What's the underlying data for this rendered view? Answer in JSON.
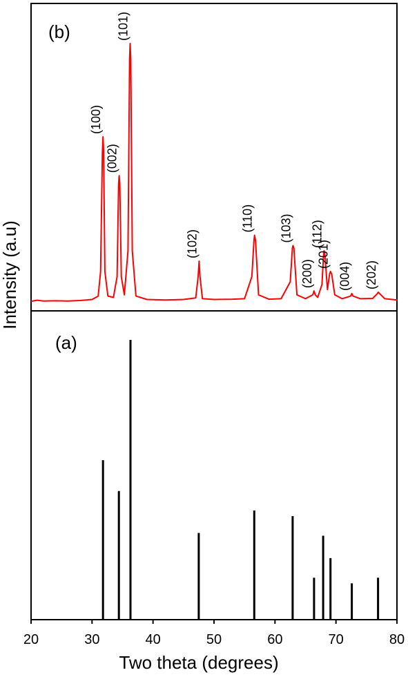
{
  "figure": {
    "ylabel": "Intensity (a.u)",
    "xlabel": "Two theta (degrees)"
  },
  "chart_data": [
    {
      "type": "line",
      "panel_label": "(b)",
      "color": "#ff0000",
      "xlim": [
        20,
        80
      ],
      "ylabel": "Intensity (a.u)",
      "grid": false,
      "x": [
        20,
        21,
        22,
        24,
        26,
        28,
        30,
        31,
        31.4,
        31.7,
        31.8,
        31.9,
        32.1,
        32.6,
        33.5,
        34.1,
        34.35,
        34.45,
        34.55,
        34.8,
        35.3,
        35.9,
        36.15,
        36.25,
        36.35,
        36.6,
        37.2,
        39,
        42,
        45,
        47,
        47.4,
        47.55,
        47.7,
        48.1,
        50,
        53,
        55,
        56.2,
        56.55,
        56.65,
        56.8,
        57.3,
        59,
        61,
        62.5,
        62.85,
        62.95,
        63.1,
        63.6,
        65,
        66.2,
        66.4,
        66.6,
        67,
        67.7,
        67.95,
        68.05,
        68.2,
        68.6,
        68.95,
        69.1,
        69.3,
        69.8,
        71,
        72.4,
        72.6,
        72.8,
        74,
        76,
        76.8,
        76.95,
        77.15,
        78,
        80
      ],
      "y": [
        0.5,
        0.9,
        0.6,
        0.7,
        0.6,
        0.8,
        1.2,
        2.5,
        12,
        58,
        64,
        58,
        12,
        2.5,
        2,
        10,
        46,
        49,
        46,
        10,
        3,
        20,
        94,
        100,
        94,
        20,
        2.5,
        1.2,
        1,
        1.2,
        1.8,
        10,
        16,
        10,
        1.5,
        1.2,
        1.3,
        1.5,
        10,
        24,
        26,
        24,
        3,
        1.3,
        1.5,
        8,
        21,
        22,
        21,
        3,
        1.5,
        3,
        4.5,
        3,
        2,
        7,
        18,
        20,
        18,
        5,
        11,
        12,
        11,
        3,
        1.5,
        2.5,
        3.5,
        2.5,
        1.5,
        1.6,
        3.5,
        4,
        3.5,
        1.5,
        1
      ],
      "peak_labels": [
        {
          "label": "(100)",
          "x": 31.8,
          "y": 64
        },
        {
          "label": "(002)",
          "x": 34.45,
          "y": 49
        },
        {
          "label": "(101)",
          "x": 36.25,
          "y": 100
        },
        {
          "label": "(102)",
          "x": 47.55,
          "y": 16
        },
        {
          "label": "(110)",
          "x": 56.65,
          "y": 26
        },
        {
          "label": "(103)",
          "x": 62.95,
          "y": 22
        },
        {
          "label": "(200)",
          "x": 66.4,
          "y": 4.5
        },
        {
          "label": "(112)",
          "x": 68.05,
          "y": 20
        },
        {
          "label": "(201)",
          "x": 69.1,
          "y": 12
        },
        {
          "label": "(004)",
          "x": 72.6,
          "y": 3.5
        },
        {
          "label": "(202)",
          "x": 76.95,
          "y": 4
        }
      ]
    },
    {
      "type": "bar",
      "panel_label": "(a)",
      "color": "#000000",
      "xlim": [
        20,
        80
      ],
      "ylim": [
        0,
        100
      ],
      "xlabel": "Two theta (degrees)",
      "x_ticks": [
        20,
        30,
        40,
        50,
        60,
        70,
        80
      ],
      "grid": false,
      "x": [
        31.8,
        34.4,
        36.3,
        47.5,
        56.6,
        62.9,
        66.4,
        67.9,
        69.1,
        72.6,
        76.9
      ],
      "values": [
        57,
        46,
        100,
        31,
        39,
        37,
        15,
        30,
        22,
        13,
        15
      ]
    }
  ]
}
